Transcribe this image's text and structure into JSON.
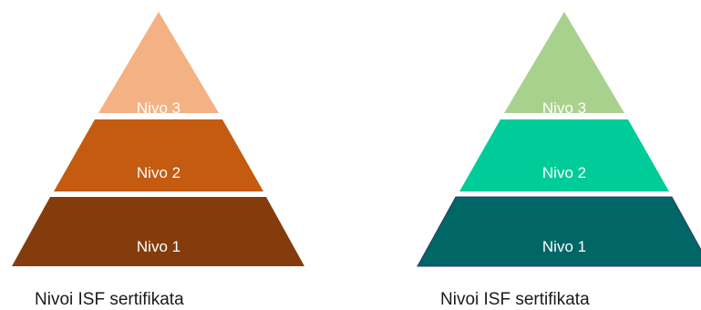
{
  "pyramids": [
    {
      "caption": "Nivoi ISF sertifikata",
      "levels": [
        {
          "label": "Nivo 3",
          "color": "#F4B183"
        },
        {
          "label": "Nivo 2",
          "color": "#C55A11"
        },
        {
          "label": "Nivo 1",
          "color": "#843C0C"
        }
      ]
    },
    {
      "caption": "Nivoi ISF sertifikata",
      "levels": [
        {
          "label": "Nivo 3",
          "color": "#A9D18E"
        },
        {
          "label": "Nivo 2",
          "color": "#00CC99"
        },
        {
          "label": "Nivo 1",
          "color": "#006666"
        }
      ]
    }
  ]
}
